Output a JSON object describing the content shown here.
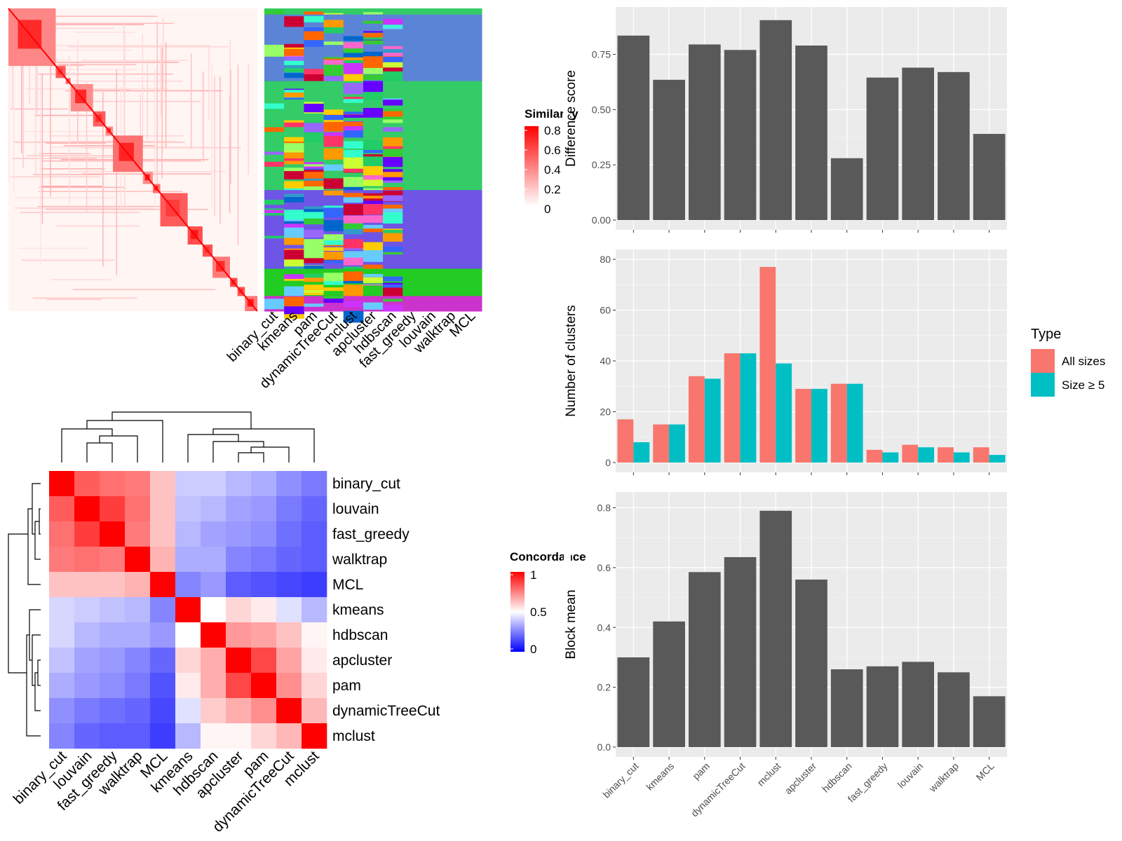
{
  "simplify_heatmap": {
    "legend_title": "Similarity",
    "legend_ticks": [
      "0.8",
      "0.6",
      "0.4",
      "0.2",
      "0"
    ],
    "methods": [
      "binary_cut",
      "kmeans",
      "pam",
      "dynamicTreeCut",
      "mclust",
      "apcluster",
      "hdbscan",
      "fast_greedy",
      "louvain",
      "walktrap",
      "MCL"
    ],
    "block_count": 16,
    "colors": {
      "high": "#ff0000",
      "low": "#ffffff"
    }
  },
  "concordance_heatmap": {
    "legend_title": "Concordance",
    "legend_ticks": [
      "1",
      "0.5",
      "0"
    ],
    "rows": [
      "binary_cut",
      "louvain",
      "fast_greedy",
      "walktrap",
      "MCL",
      "kmeans",
      "hdbscan",
      "apcluster",
      "pam",
      "dynamicTreeCut",
      "mclust"
    ],
    "cols": [
      "binary_cut",
      "louvain",
      "fast_greedy",
      "walktrap",
      "MCL",
      "kmeans",
      "hdbscan",
      "apcluster",
      "pam",
      "dynamicTreeCut",
      "mclust"
    ],
    "values": [
      [
        1.0,
        0.82,
        0.78,
        0.76,
        0.62,
        0.4,
        0.4,
        0.36,
        0.34,
        0.28,
        0.24
      ],
      [
        0.82,
        1.0,
        0.88,
        0.78,
        0.62,
        0.38,
        0.36,
        0.32,
        0.3,
        0.24,
        0.2
      ],
      [
        0.78,
        0.88,
        1.0,
        0.76,
        0.62,
        0.36,
        0.32,
        0.3,
        0.28,
        0.22,
        0.18
      ],
      [
        0.76,
        0.78,
        0.76,
        1.0,
        0.65,
        0.34,
        0.34,
        0.26,
        0.24,
        0.2,
        0.18
      ],
      [
        0.62,
        0.62,
        0.62,
        0.65,
        1.0,
        0.26,
        0.3,
        0.18,
        0.16,
        0.14,
        0.12
      ],
      [
        0.42,
        0.4,
        0.38,
        0.36,
        0.26,
        1.0,
        0.5,
        0.58,
        0.54,
        0.44,
        0.36
      ],
      [
        0.42,
        0.36,
        0.34,
        0.34,
        0.3,
        0.5,
        1.0,
        0.7,
        0.68,
        0.62,
        0.52
      ],
      [
        0.38,
        0.32,
        0.3,
        0.26,
        0.2,
        0.58,
        0.66,
        1.0,
        0.86,
        0.68,
        0.54
      ],
      [
        0.34,
        0.3,
        0.28,
        0.24,
        0.16,
        0.54,
        0.66,
        0.86,
        1.0,
        0.72,
        0.58
      ],
      [
        0.28,
        0.24,
        0.22,
        0.2,
        0.14,
        0.44,
        0.6,
        0.66,
        0.72,
        1.0,
        0.64
      ],
      [
        0.26,
        0.2,
        0.18,
        0.18,
        0.12,
        0.36,
        0.52,
        0.52,
        0.58,
        0.64,
        1.0
      ]
    ],
    "colors": {
      "low": "#0000ff",
      "mid": "#ffffff",
      "high": "#ff0000"
    }
  },
  "chart_data": [
    {
      "type": "bar",
      "categories": [
        "binary_cut",
        "kmeans",
        "pam",
        "dynamicTreeCut",
        "mclust",
        "apcluster",
        "hdbscan",
        "fast_greedy",
        "louvain",
        "walktrap",
        "MCL"
      ],
      "values": [
        0.835,
        0.635,
        0.795,
        0.77,
        0.905,
        0.79,
        0.28,
        0.645,
        0.69,
        0.67,
        0.39
      ],
      "ylabel": "Difference score",
      "ylim": [
        0,
        0.92
      ],
      "yticks": [
        "0.00",
        "0.25",
        "0.50",
        "0.75"
      ],
      "grid": true,
      "color": "#595959"
    },
    {
      "type": "bar",
      "categories": [
        "binary_cut",
        "kmeans",
        "pam",
        "dynamicTreeCut",
        "mclust",
        "apcluster",
        "hdbscan",
        "fast_greedy",
        "louvain",
        "walktrap",
        "MCL"
      ],
      "series": [
        {
          "name": "All sizes",
          "values": [
            17,
            15,
            34,
            43,
            77,
            29,
            31,
            5,
            7,
            6,
            6
          ],
          "color": "#f8766d"
        },
        {
          "name": "Size ≥ 5",
          "values": [
            8,
            15,
            33,
            43,
            39,
            29,
            31,
            4,
            6,
            4,
            3
          ],
          "color": "#00bfc4"
        }
      ],
      "ylabel": "Number of clusters",
      "ylim": [
        0,
        80
      ],
      "yticks": [
        "0",
        "20",
        "40",
        "60",
        "80"
      ],
      "legend": {
        "title": "Type",
        "placement": "right"
      },
      "grid": true
    },
    {
      "type": "bar",
      "categories": [
        "binary_cut",
        "kmeans",
        "pam",
        "dynamicTreeCut",
        "mclust",
        "apcluster",
        "hdbscan",
        "fast_greedy",
        "louvain",
        "walktrap",
        "MCL"
      ],
      "values": [
        0.3,
        0.42,
        0.585,
        0.635,
        0.79,
        0.56,
        0.26,
        0.27,
        0.285,
        0.25,
        0.17
      ],
      "ylabel": "Block mean",
      "ylim": [
        0,
        0.82
      ],
      "yticks": [
        "0.0",
        "0.2",
        "0.4",
        "0.6",
        "0.8"
      ],
      "grid": true,
      "color": "#595959"
    }
  ]
}
